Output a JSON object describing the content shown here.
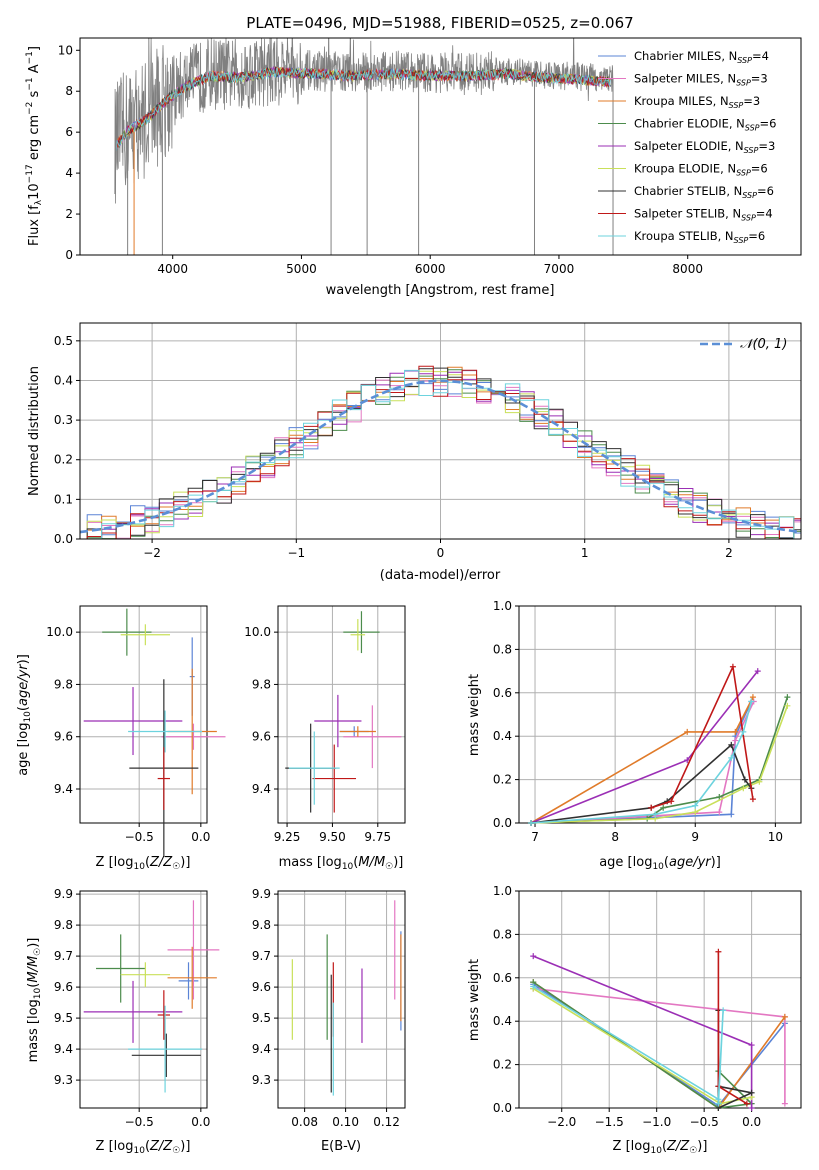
{
  "colors": {
    "chabrier_miles": "#5b84d6",
    "salpeter_miles": "#e377c2",
    "kroupa_miles": "#e07b2a",
    "chabrier_elodie": "#4c8c4c",
    "salpeter_elodie": "#9b2fb5",
    "kroupa_elodie": "#c9e05a",
    "chabrier_stelib": "#303030",
    "salpeter_stelib": "#c01818",
    "kroupa_stelib": "#6dd3de",
    "gray_spectrum": "#808080",
    "normal_curve": "#5b8fd6",
    "grid": "#b0b0b0"
  },
  "chart_data": [
    {
      "type": "line",
      "title": "PLATE=0496, MJD=51988, FIBERID=0525, z=0.067",
      "xlabel": "wavelength [Angstrom, rest frame]",
      "ylabel": "Flux [f_λ 10^-17 erg cm^-2 s^-1 A^-1]",
      "xlim": [
        3280,
        8880
      ],
      "ylim": [
        0,
        10.6
      ],
      "xticks": [
        4000,
        5000,
        6000,
        7000,
        8000
      ],
      "yticks": [
        0,
        2,
        4,
        6,
        8,
        10
      ],
      "grid": false,
      "legend_position": "right",
      "series": [
        {
          "name": "Chabrier MILES, N_SSP=4",
          "color": "chabrier_miles"
        },
        {
          "name": "Salpeter MILES, N_SSP=3",
          "color": "salpeter_miles"
        },
        {
          "name": "Kroupa MILES, N_SSP=3",
          "color": "kroupa_miles"
        },
        {
          "name": "Chabrier ELODIE, N_SSP=6",
          "color": "chabrier_elodie"
        },
        {
          "name": "Salpeter ELODIE, N_SSP=3",
          "color": "salpeter_elodie"
        },
        {
          "name": "Kroupa ELODIE, N_SSP=6",
          "color": "kroupa_elodie"
        },
        {
          "name": "Chabrier STELIB, N_SSP=6",
          "color": "chabrier_stelib"
        },
        {
          "name": "Salpeter STELIB, N_SSP=4",
          "color": "salpeter_stelib"
        },
        {
          "name": "Kroupa STELIB, N_SSP=6",
          "color": "kroupa_stelib"
        }
      ],
      "continuum": {
        "x": [
          3550,
          3650,
          3800,
          3950,
          4100,
          4300,
          4500,
          4800,
          5100,
          5400,
          5700,
          6000,
          6300,
          6600,
          6900,
          7200,
          7400
        ],
        "y": [
          5.4,
          6.2,
          6.8,
          7.7,
          8.4,
          8.9,
          8.8,
          9.1,
          9.0,
          8.9,
          9.0,
          8.9,
          8.9,
          9.0,
          8.8,
          8.7,
          8.6
        ]
      },
      "spikes_down_x": [
        3650,
        3700,
        3920,
        5230,
        5510,
        5910,
        6810,
        7420
      ]
    },
    {
      "type": "bar",
      "xlabel": "(data-model)/error",
      "ylabel": "Normed distribution",
      "xlim": [
        -2.5,
        2.5
      ],
      "ylim": [
        0,
        0.545
      ],
      "xticks": [
        -2,
        -1,
        0,
        1,
        2
      ],
      "xticklabels": [
        "−2",
        "−1",
        "0",
        "1",
        "2"
      ],
      "yticks": [
        0.0,
        0.1,
        0.2,
        0.3,
        0.4,
        0.5
      ],
      "yticklabels": [
        "0.0",
        "0.1",
        "0.2",
        "0.3",
        "0.4",
        "0.5"
      ],
      "grid": true,
      "legend": "𝒩(0, 1)",
      "legend_position": "top-right",
      "bin_width": 0.1
    },
    {
      "type": "scatter",
      "xlabel": "Z [log10(Z/Z☉)]",
      "ylabel": "age [log10(age/yr)]",
      "xlim": [
        -0.98,
        0.05
      ],
      "ylim": [
        9.27,
        10.1
      ],
      "xticks": [
        -0.5,
        0.0
      ],
      "xticklabels": [
        "−0.5",
        "0.0"
      ],
      "yticks": [
        9.4,
        9.6,
        9.8,
        10.0
      ],
      "yticklabels": [
        "9.4",
        "9.6",
        "9.8",
        "10.0"
      ],
      "points": [
        {
          "c": "chabrier_miles",
          "x": -0.07,
          "y": 9.83,
          "xe": 0.02,
          "ye": 0.15
        },
        {
          "c": "salpeter_miles",
          "x": -0.06,
          "y": 9.6,
          "xe": 0.26,
          "ye": 0.05
        },
        {
          "c": "kroupa_miles",
          "x": -0.07,
          "y": 9.62,
          "xe": 0.2,
          "ye": 0.24
        },
        {
          "c": "chabrier_elodie",
          "x": -0.6,
          "y": 10.0,
          "xe": 0.2,
          "ye": 0.09
        },
        {
          "c": "salpeter_elodie",
          "x": -0.55,
          "y": 9.66,
          "xe": 0.4,
          "ye": 0.13
        },
        {
          "c": "kroupa_elodie",
          "x": -0.45,
          "y": 9.99,
          "xe": 0.2,
          "ye": 0.04
        },
        {
          "c": "chabrier_stelib",
          "x": -0.3,
          "y": 9.48,
          "xe": 0.28,
          "ye": 0.34
        },
        {
          "c": "salpeter_stelib",
          "x": -0.3,
          "y": 9.44,
          "xe": 0.05,
          "ye": 0.12
        },
        {
          "c": "kroupa_stelib",
          "x": -0.29,
          "y": 9.62,
          "xe": 0.3,
          "ye": 0.08
        }
      ]
    },
    {
      "type": "scatter",
      "xlabel": "mass [log10(M/M☉)]",
      "xlim": [
        9.2,
        9.9
      ],
      "ylim": [
        9.27,
        10.1
      ],
      "xticks": [
        9.25,
        9.5,
        9.75
      ],
      "xticklabels": [
        "9.25",
        "9.50",
        "9.75"
      ],
      "yticks": [
        9.4,
        9.6,
        9.8,
        10.0
      ],
      "yticklabels": [
        "9.4",
        "9.6",
        "9.8",
        "10.0"
      ],
      "points": [
        {
          "c": "chabrier_miles",
          "x": 9.62,
          "y": 9.62,
          "xe": 0.08,
          "ye": 0.02
        },
        {
          "c": "salpeter_miles",
          "x": 9.72,
          "y": 9.6,
          "xe": 0.16,
          "ye": 0.12
        },
        {
          "c": "kroupa_miles",
          "x": 9.64,
          "y": 9.62,
          "xe": 0.1,
          "ye": 0.02
        },
        {
          "c": "chabrier_elodie",
          "x": 9.66,
          "y": 10.0,
          "xe": 0.1,
          "ye": 0.08
        },
        {
          "c": "salpeter_elodie",
          "x": 9.53,
          "y": 9.66,
          "xe": 0.13,
          "ye": 0.1
        },
        {
          "c": "kroupa_elodie",
          "x": 9.64,
          "y": 9.99,
          "xe": 0.04,
          "ye": 0.06
        },
        {
          "c": "chabrier_stelib",
          "x": 9.38,
          "y": 9.48,
          "xe": 0.14,
          "ye": 0.17
        },
        {
          "c": "salpeter_stelib",
          "x": 9.51,
          "y": 9.44,
          "xe": 0.12,
          "ye": 0.13
        },
        {
          "c": "kroupa_stelib",
          "x": 9.4,
          "y": 9.48,
          "xe": 0.14,
          "ye": 0.14
        }
      ]
    },
    {
      "type": "line",
      "xlabel": "age [log10(age/yr)]",
      "ylabel": "mass weight",
      "xlim": [
        6.8,
        10.32
      ],
      "ylim": [
        0,
        1.0
      ],
      "xticks": [
        7,
        8,
        9,
        10
      ],
      "yticks": [
        0.0,
        0.2,
        0.4,
        0.6,
        0.8,
        1.0
      ],
      "yticklabels": [
        "0.0",
        "0.2",
        "0.4",
        "0.6",
        "0.8",
        "1.0"
      ],
      "grid": true,
      "series": [
        {
          "c": "chabrier_miles",
          "x": [
            6.95,
            9.45,
            9.5,
            9.7
          ],
          "y": [
            0.0,
            0.04,
            0.4,
            0.56
          ]
        },
        {
          "c": "salpeter_miles",
          "x": [
            6.95,
            9.3,
            9.5,
            9.73
          ],
          "y": [
            0.0,
            0.05,
            0.38,
            0.56
          ]
        },
        {
          "c": "kroupa_miles",
          "x": [
            6.95,
            8.9,
            9.5,
            9.72
          ],
          "y": [
            0.0,
            0.42,
            0.42,
            0.58
          ]
        },
        {
          "c": "chabrier_elodie",
          "x": [
            6.95,
            8.4,
            8.6,
            9.3,
            9.8,
            10.15
          ],
          "y": [
            0.0,
            0.02,
            0.07,
            0.12,
            0.2,
            0.58
          ]
        },
        {
          "c": "salpeter_elodie",
          "x": [
            6.95,
            8.9,
            9.78
          ],
          "y": [
            0.0,
            0.29,
            0.7
          ]
        },
        {
          "c": "kroupa_elodie",
          "x": [
            6.95,
            8.5,
            9.0,
            9.6,
            9.8,
            10.15
          ],
          "y": [
            0.0,
            0.02,
            0.05,
            0.16,
            0.19,
            0.54
          ]
        },
        {
          "c": "chabrier_stelib",
          "x": [
            6.95,
            8.45,
            8.65,
            9.45,
            9.62,
            9.7
          ],
          "y": [
            0.0,
            0.07,
            0.1,
            0.36,
            0.2,
            0.16
          ]
        },
        {
          "c": "salpeter_stelib",
          "x": [
            8.45,
            8.7,
            9.47,
            9.72
          ],
          "y": [
            0.07,
            0.1,
            0.72,
            0.11
          ]
        },
        {
          "c": "kroupa_stelib",
          "x": [
            6.95,
            8.5,
            9.0,
            9.45,
            9.6,
            9.7
          ],
          "y": [
            0.0,
            0.04,
            0.08,
            0.3,
            0.42,
            0.56
          ]
        }
      ]
    },
    {
      "type": "scatter",
      "xlabel": "Z [log10(Z/Z☉)]",
      "ylabel": "mass [log10(M/M☉)]",
      "xlim": [
        -0.98,
        0.05
      ],
      "ylim": [
        9.21,
        9.91
      ],
      "xticks": [
        -0.5,
        0.0
      ],
      "xticklabels": [
        "−0.5",
        "0.0"
      ],
      "yticks": [
        9.3,
        9.4,
        9.5,
        9.6,
        9.7,
        9.8,
        9.9
      ],
      "yticklabels": [
        "9.3",
        "9.4",
        "9.5",
        "9.6",
        "9.7",
        "9.8",
        "9.9"
      ],
      "points": [
        {
          "c": "chabrier_miles",
          "x": -0.1,
          "y": 9.62,
          "xe": 0.08,
          "ye": 0.06
        },
        {
          "c": "salpeter_miles",
          "x": -0.06,
          "y": 9.72,
          "xe": 0.21,
          "ye": 0.16
        },
        {
          "c": "kroupa_miles",
          "x": -0.07,
          "y": 9.63,
          "xe": 0.2,
          "ye": 0.1
        },
        {
          "c": "chabrier_elodie",
          "x": -0.65,
          "y": 9.66,
          "xe": 0.2,
          "ye": 0.11
        },
        {
          "c": "salpeter_elodie",
          "x": -0.55,
          "y": 9.52,
          "xe": 0.4,
          "ye": 0.1
        },
        {
          "c": "kroupa_elodie",
          "x": -0.45,
          "y": 9.64,
          "xe": 0.2,
          "ye": 0.04
        },
        {
          "c": "chabrier_stelib",
          "x": -0.28,
          "y": 9.38,
          "xe": 0.28,
          "ye": 0.07
        },
        {
          "c": "salpeter_stelib",
          "x": -0.3,
          "y": 9.51,
          "xe": 0.05,
          "ye": 0.08
        },
        {
          "c": "kroupa_stelib",
          "x": -0.29,
          "y": 9.4,
          "xe": 0.3,
          "ye": 0.14
        }
      ]
    },
    {
      "type": "scatter",
      "xlabel": "E(B-V)",
      "xlim": [
        0.067,
        0.129
      ],
      "ylim": [
        9.21,
        9.91
      ],
      "xticks": [
        0.08,
        0.1,
        0.12
      ],
      "xticklabels": [
        "0.08",
        "0.10",
        "0.12"
      ],
      "yticks": [
        9.3,
        9.4,
        9.5,
        9.6,
        9.7,
        9.8,
        9.9
      ],
      "yticklabels": [
        "9.3",
        "9.4",
        "9.5",
        "9.6",
        "9.7",
        "9.8",
        "9.9"
      ],
      "points": [
        {
          "c": "chabrier_miles",
          "x": 0.127,
          "y": 9.62,
          "xe": 0.0,
          "ye": 0.16
        },
        {
          "c": "salpeter_miles",
          "x": 0.124,
          "y": 9.72,
          "xe": 0.0,
          "ye": 0.16
        },
        {
          "c": "kroupa_miles",
          "x": 0.127,
          "y": 9.63,
          "xe": 0.0,
          "ye": 0.14
        },
        {
          "c": "chabrier_elodie",
          "x": 0.091,
          "y": 9.6,
          "xe": 0.0,
          "ye": 0.17
        },
        {
          "c": "salpeter_elodie",
          "x": 0.108,
          "y": 9.54,
          "xe": 0.0,
          "ye": 0.12
        },
        {
          "c": "kroupa_elodie",
          "x": 0.074,
          "y": 9.56,
          "xe": 0.0,
          "ye": 0.13
        },
        {
          "c": "chabrier_stelib",
          "x": 0.093,
          "y": 9.45,
          "xe": 0.0,
          "ye": 0.19
        },
        {
          "c": "salpeter_stelib",
          "x": 0.094,
          "y": 9.56,
          "xe": 0.0,
          "ye": 0.12
        },
        {
          "c": "kroupa_stelib",
          "x": 0.094,
          "y": 9.4,
          "xe": 0.0,
          "ye": 0.15
        }
      ]
    },
    {
      "type": "line",
      "xlabel": "Z [log10(Z/Z☉)]",
      "ylabel": "mass weight",
      "xlim": [
        -2.45,
        0.52
      ],
      "ylim": [
        0,
        1.0
      ],
      "xticks": [
        -2.0,
        -1.5,
        -1.0,
        -0.5,
        0.0
      ],
      "xticklabels": [
        "−2.0",
        "−1.5",
        "−1.0",
        "−0.5",
        "0.0"
      ],
      "yticks": [
        0.0,
        0.2,
        0.4,
        0.6,
        0.8,
        1.0
      ],
      "yticklabels": [
        "0.0",
        "0.2",
        "0.4",
        "0.6",
        "0.8",
        "1.0"
      ],
      "grid": true,
      "series": [
        {
          "c": "chabrier_miles",
          "x": [
            -2.3,
            -0.35,
            0.35
          ],
          "y": [
            0.57,
            0.01,
            0.39
          ]
        },
        {
          "c": "salpeter_miles",
          "x": [
            -2.3,
            0.35,
            0.35
          ],
          "y": [
            0.55,
            0.42,
            0.02
          ]
        },
        {
          "c": "kroupa_miles",
          "x": [
            -2.3,
            -0.35,
            0.35
          ],
          "y": [
            0.58,
            0.0,
            0.42
          ]
        },
        {
          "c": "chabrier_elodie",
          "x": [
            -2.3,
            -0.35,
            0.0,
            -0.35
          ],
          "y": [
            0.58,
            0.0,
            0.02,
            0.17
          ]
        },
        {
          "c": "salpeter_elodie",
          "x": [
            -2.3,
            0.0,
            0.0
          ],
          "y": [
            0.7,
            0.29,
            0.0
          ]
        },
        {
          "c": "kroupa_elodie",
          "x": [
            -2.3,
            -0.33,
            0.0
          ],
          "y": [
            0.55,
            0.02,
            0.05
          ]
        },
        {
          "c": "chabrier_stelib",
          "x": [
            -0.35,
            0.0,
            -0.35,
            -0.35
          ],
          "y": [
            0.1,
            0.07,
            0.0,
            0.45
          ]
        },
        {
          "c": "salpeter_stelib",
          "x": [
            -0.35,
            -0.35,
            -0.05
          ],
          "y": [
            0.72,
            0.1,
            0.02
          ]
        },
        {
          "c": "kroupa_stelib",
          "x": [
            -2.3,
            -0.35,
            -0.3,
            -0.35
          ],
          "y": [
            0.56,
            0.04,
            0.45,
            0.02
          ]
        }
      ]
    }
  ]
}
